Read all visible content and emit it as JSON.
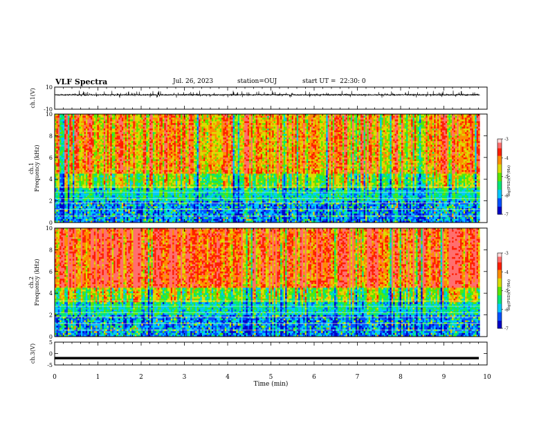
{
  "header": {
    "title": "VLF Spectra",
    "date": "Jul. 26, 2023",
    "station": "station=OUJ",
    "start": "start UT =  22:30: 0"
  },
  "chart_data": [
    {
      "type": "line",
      "name": "ch1-waveform",
      "ylabel": "ch.1(V)",
      "ylim": [
        -10,
        10
      ],
      "y_ticks": [
        "10",
        "-10"
      ],
      "xlim": [
        0,
        10
      ],
      "baseline": 3,
      "amplitude_range": [
        0.5,
        6
      ]
    },
    {
      "type": "heatmap",
      "name": "ch1-spectrogram",
      "ylabel_top": "ch.1",
      "ylabel": "Frequency (kHz)",
      "ylim": [
        0,
        10
      ],
      "y_ticks": [
        "0",
        "2",
        "4",
        "6",
        "8",
        "10"
      ],
      "xlim": [
        0,
        10
      ],
      "data_end_min": 9.83,
      "colorbar": {
        "label": "log(PSD)(V²/Hz)",
        "range": [
          -7,
          -3
        ],
        "ticks": [
          "-3",
          "-4",
          "-5",
          "-6",
          "-7"
        ]
      }
    },
    {
      "type": "heatmap",
      "name": "ch2-spectrogram",
      "ylabel_top": "ch.2",
      "ylabel": "Frequency (kHz)",
      "ylim": [
        0,
        10
      ],
      "y_ticks": [
        "0",
        "2",
        "4",
        "6",
        "8",
        "10"
      ],
      "xlim": [
        0,
        10
      ],
      "data_end_min": 9.83,
      "colorbar": {
        "label": "log(PSD)(V²/Hz)",
        "range": [
          -7,
          -3
        ],
        "ticks": [
          "-3",
          "-4",
          "-5",
          "-6",
          "-7"
        ]
      }
    },
    {
      "type": "line",
      "name": "ch3-voltage",
      "ylabel": "ch.3(V)",
      "ylim": [
        -5,
        5
      ],
      "y_ticks": [
        "5",
        "0",
        "-5"
      ],
      "xlim": [
        0,
        10
      ],
      "constant_value": -2,
      "x_ticks": [
        "0",
        "1",
        "2",
        "3",
        "4",
        "5",
        "6",
        "7",
        "8",
        "9",
        "10"
      ],
      "xlabel": "Time (min)"
    }
  ],
  "colors": {
    "ink": "#000000",
    "palette": [
      "#000000",
      "#0000c8",
      "#0050ff",
      "#00c8ff",
      "#00e678",
      "#5ae600",
      "#dcdc00",
      "#ff8c00",
      "#ff1e00",
      "#ff6e6e",
      "#ffdcdc",
      "#ffffff"
    ]
  }
}
